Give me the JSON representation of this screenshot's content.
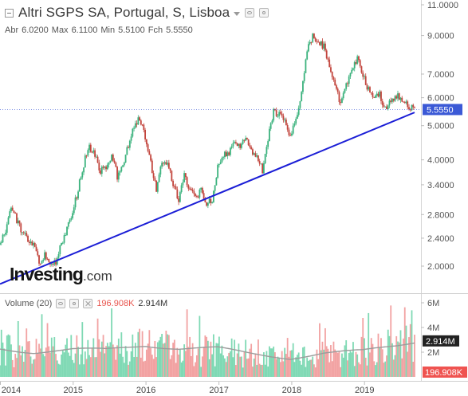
{
  "header": {
    "title": "Altri SGPS SA, Portugal, S, Lisboa",
    "ohlc": [
      {
        "label": "Abr",
        "value": "6.0200"
      },
      {
        "label": "Max",
        "value": "6.1100"
      },
      {
        "label": "Min",
        "value": "5.5100"
      },
      {
        "label": "Fch",
        "value": "5.5550"
      }
    ]
  },
  "volume_header": {
    "label": "Volume (20)",
    "volume_value": "196.908K",
    "ma_value": "2.914M"
  },
  "logo": {
    "brand": "Investing",
    "suffix": ".com"
  },
  "colors": {
    "up": "#3bb27d",
    "down": "#c2453d",
    "vol_up": "#7fd9b4",
    "vol_down": "#f2a2a2",
    "trendline": "#1b1ed6",
    "price_tag": "#3b59d6",
    "vol_ma": "#9c9c9c",
    "vol_tag_dark": "#222222",
    "vol_tag_red": "#ef5350"
  },
  "chart_data": [
    {
      "type": "candlestick",
      "title": "Altri SGPS SA, Portugal, S, Lisboa",
      "x_axis_labels": [
        "2014",
        "2015",
        "2016",
        "2017",
        "2018",
        "2019"
      ],
      "y_axis_scale": "log",
      "y_ticks": [
        "11.0000",
        "9.0000",
        "7.0000",
        "6.0000",
        "5.0000",
        "4.0000",
        "3.4000",
        "2.8000",
        "2.4000",
        "2.0000"
      ],
      "ylim": [
        1.78,
        11.0
      ],
      "last_price": "5.5550",
      "price_points": [
        [
          "2013-12-30",
          2.3
        ],
        [
          "2014-01-27",
          2.5
        ],
        [
          "2014-02-24",
          2.95
        ],
        [
          "2014-03-24",
          2.7
        ],
        [
          "2014-04-21",
          2.5
        ],
        [
          "2014-05-19",
          2.35
        ],
        [
          "2014-06-16",
          2.3
        ],
        [
          "2014-07-14",
          2.05
        ],
        [
          "2014-08-11",
          2.15
        ],
        [
          "2014-09-08",
          2.0
        ],
        [
          "2014-10-06",
          2.05
        ],
        [
          "2014-11-03",
          2.3
        ],
        [
          "2014-12-01",
          2.55
        ],
        [
          "2014-12-29",
          2.85
        ],
        [
          "2015-01-26",
          3.3
        ],
        [
          "2015-02-23",
          3.9
        ],
        [
          "2015-03-23",
          4.4
        ],
        [
          "2015-04-20",
          4.1
        ],
        [
          "2015-05-18",
          3.7
        ],
        [
          "2015-06-15",
          3.85
        ],
        [
          "2015-07-13",
          4.15
        ],
        [
          "2015-08-10",
          3.6
        ],
        [
          "2015-09-07",
          3.9
        ],
        [
          "2015-10-05",
          4.4
        ],
        [
          "2015-11-02",
          5.0
        ],
        [
          "2015-11-30",
          5.3
        ],
        [
          "2015-12-28",
          4.6
        ],
        [
          "2016-01-25",
          3.9
        ],
        [
          "2016-02-22",
          3.3
        ],
        [
          "2016-03-21",
          3.9
        ],
        [
          "2016-04-18",
          4.0
        ],
        [
          "2016-05-16",
          3.4
        ],
        [
          "2016-06-13",
          3.1
        ],
        [
          "2016-07-11",
          3.6
        ],
        [
          "2016-08-08",
          3.3
        ],
        [
          "2016-09-05",
          3.1
        ],
        [
          "2016-10-03",
          3.3
        ],
        [
          "2016-10-31",
          3.0
        ],
        [
          "2016-11-28",
          3.1
        ],
        [
          "2016-12-26",
          3.8
        ],
        [
          "2017-01-23",
          4.1
        ],
        [
          "2017-02-20",
          4.2
        ],
        [
          "2017-03-20",
          4.45
        ],
        [
          "2017-04-17",
          4.35
        ],
        [
          "2017-05-15",
          4.55
        ],
        [
          "2017-06-12",
          4.3
        ],
        [
          "2017-07-10",
          4.05
        ],
        [
          "2017-08-07",
          3.75
        ],
        [
          "2017-09-04",
          4.6
        ],
        [
          "2017-10-02",
          5.5
        ],
        [
          "2017-10-30",
          5.4
        ],
        [
          "2017-11-27",
          5.1
        ],
        [
          "2017-12-25",
          4.7
        ],
        [
          "2018-01-22",
          5.2
        ],
        [
          "2018-02-19",
          6.2
        ],
        [
          "2018-03-19",
          8.2
        ],
        [
          "2018-04-16",
          8.9
        ],
        [
          "2018-05-14",
          8.6
        ],
        [
          "2018-06-11",
          8.4
        ],
        [
          "2018-07-09",
          7.5
        ],
        [
          "2018-08-06",
          6.5
        ],
        [
          "2018-09-03",
          5.7
        ],
        [
          "2018-10-01",
          6.5
        ],
        [
          "2018-10-29",
          7.1
        ],
        [
          "2018-11-26",
          7.7
        ],
        [
          "2018-12-24",
          7.0
        ],
        [
          "2019-01-21",
          6.3
        ],
        [
          "2019-02-18",
          6.0
        ],
        [
          "2019-03-18",
          6.1
        ],
        [
          "2019-04-15",
          5.6
        ],
        [
          "2019-05-13",
          5.8
        ],
        [
          "2019-06-10",
          6.1
        ],
        [
          "2019-07-08",
          5.8
        ],
        [
          "2019-09-09",
          5.56
        ]
      ],
      "trendline": {
        "from": [
          "2013-12-30",
          1.78
        ],
        "to": [
          "2019-09-09",
          5.45
        ]
      }
    },
    {
      "type": "bar",
      "title": "Volume (20)",
      "y_ticks": [
        "6M",
        "4M",
        "2M"
      ],
      "ylim": [
        0,
        6.5
      ],
      "unit": "M",
      "last_volume": "196.908K",
      "ma_last": "2.914M",
      "ma_points": [
        [
          "2013-12-30",
          2.3
        ],
        [
          "2014-06-16",
          2.0
        ],
        [
          "2014-12-29",
          2.2
        ],
        [
          "2015-06-15",
          2.2
        ],
        [
          "2015-12-28",
          2.6
        ],
        [
          "2016-06-13",
          2.3
        ],
        [
          "2016-12-26",
          2.3
        ],
        [
          "2017-06-12",
          1.9
        ],
        [
          "2017-12-25",
          1.5
        ],
        [
          "2018-06-11",
          1.9
        ],
        [
          "2018-12-24",
          2.1
        ],
        [
          "2019-06-10",
          2.6
        ],
        [
          "2019-09-09",
          2.914
        ]
      ]
    }
  ]
}
